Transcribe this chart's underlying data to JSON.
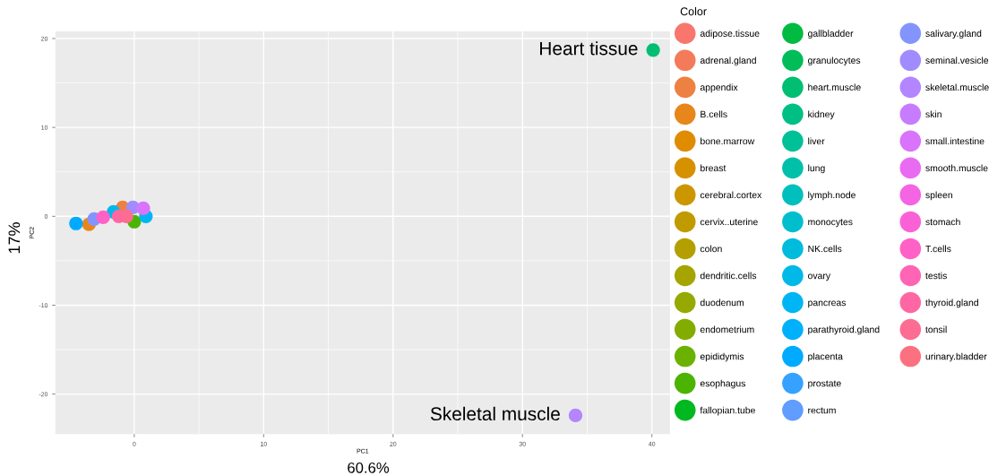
{
  "chart_data": {
    "type": "scatter",
    "xlabel": "PC1",
    "ylabel": "PC2",
    "legend_title": "Color",
    "annotations": [
      "60.6%",
      "17%",
      {
        "text": "Heart tissue",
        "x": 40.1,
        "y": 18.7
      },
      {
        "text": "Skeletal muscle",
        "x": 34.1,
        "y": -22.4
      }
    ],
    "xlim": [
      -6.1,
      41.4
    ],
    "ylim": [
      -24.5,
      20.8
    ],
    "xticks": [
      0,
      10,
      20,
      30,
      40
    ],
    "yticks": [
      -20,
      -10,
      0,
      10,
      20
    ],
    "grid": true,
    "legend": "right",
    "marker": "circle",
    "series": [
      {
        "name": "adipose.tissue",
        "color": "#F8766D",
        "x": [
          null
        ],
        "values": [
          null
        ]
      },
      {
        "name": "adrenal.gland",
        "color": "#F37B59",
        "x": [
          null
        ],
        "values": [
          null
        ]
      },
      {
        "name": "appendix",
        "color": "#ED8141",
        "x": [
          -0.9
        ],
        "values": [
          1.0
        ]
      },
      {
        "name": "B.cells",
        "color": "#E7861B",
        "x": [
          -3.5
        ],
        "values": [
          -0.9
        ]
      },
      {
        "name": "bone.marrow",
        "color": "#DF8C00",
        "x": [
          null
        ],
        "values": [
          null
        ]
      },
      {
        "name": "breast",
        "color": "#D69100",
        "x": [
          null
        ],
        "values": [
          null
        ]
      },
      {
        "name": "cerebral.cortex",
        "color": "#CC9600",
        "x": [
          null
        ],
        "values": [
          null
        ]
      },
      {
        "name": "cervix..uterine",
        "color": "#C09B00",
        "x": [
          null
        ],
        "values": [
          null
        ]
      },
      {
        "name": "colon",
        "color": "#B3A000",
        "x": [
          null
        ],
        "values": [
          null
        ]
      },
      {
        "name": "dendritic.cells",
        "color": "#A5A400",
        "x": [
          null
        ],
        "values": [
          null
        ]
      },
      {
        "name": "duodenum",
        "color": "#95A900",
        "x": [
          null
        ],
        "values": [
          null
        ]
      },
      {
        "name": "endometrium",
        "color": "#82AD00",
        "x": [
          null
        ],
        "values": [
          null
        ]
      },
      {
        "name": "epididymis",
        "color": "#6BB100",
        "x": [
          null
        ],
        "values": [
          null
        ]
      },
      {
        "name": "esophagus",
        "color": "#4BB400",
        "x": [
          0.0
        ],
        "values": [
          -0.6
        ]
      },
      {
        "name": "fallopian.tube",
        "color": "#00B81F",
        "x": [
          null
        ],
        "values": [
          null
        ]
      },
      {
        "name": "gallbladder",
        "color": "#00BA42",
        "x": [
          null
        ],
        "values": [
          null
        ]
      },
      {
        "name": "granulocytes",
        "color": "#00BC59",
        "x": [
          null
        ],
        "values": [
          null
        ]
      },
      {
        "name": "heart.muscle",
        "color": "#00BE72",
        "x": [
          40.1
        ],
        "values": [
          18.7
        ]
      },
      {
        "name": "kidney",
        "color": "#00BF85",
        "x": [
          null
        ],
        "values": [
          null
        ]
      },
      {
        "name": "liver",
        "color": "#00C098",
        "x": [
          null
        ],
        "values": [
          null
        ]
      },
      {
        "name": "lung",
        "color": "#00C0AA",
        "x": [
          null
        ],
        "values": [
          null
        ]
      },
      {
        "name": "lymph.node",
        "color": "#00BFBC",
        "x": [
          null
        ],
        "values": [
          null
        ]
      },
      {
        "name": "monocytes",
        "color": "#00BECD",
        "x": [
          null
        ],
        "values": [
          null
        ]
      },
      {
        "name": "NK.cells",
        "color": "#00BCDC",
        "x": [
          null
        ],
        "values": [
          null
        ]
      },
      {
        "name": "ovary",
        "color": "#00B9E8",
        "x": [
          -1.6
        ],
        "values": [
          0.5
        ]
      },
      {
        "name": "pancreas",
        "color": "#00B5F3",
        "x": [
          0.9
        ],
        "values": [
          0.0
        ]
      },
      {
        "name": "parathyroid.gland",
        "color": "#00B0FB",
        "x": [
          null
        ],
        "values": [
          null
        ]
      },
      {
        "name": "placenta",
        "color": "#00AAFE",
        "x": [
          -4.5
        ],
        "values": [
          -0.8
        ]
      },
      {
        "name": "prostate",
        "color": "#35A2FF",
        "x": [
          null
        ],
        "values": [
          null
        ]
      },
      {
        "name": "rectum",
        "color": "#619CFF",
        "x": [
          null
        ],
        "values": [
          null
        ]
      },
      {
        "name": "salivary.gland",
        "color": "#8494FF",
        "x": [
          -3.1
        ],
        "values": [
          -0.3
        ]
      },
      {
        "name": "seminal.vesicle",
        "color": "#A08CFF",
        "x": [
          -0.1
        ],
        "values": [
          1.0
        ]
      },
      {
        "name": "skeletal.muscle",
        "color": "#B385FF",
        "x": [
          34.1
        ],
        "values": [
          -22.4
        ]
      },
      {
        "name": "skin",
        "color": "#C77CFF",
        "x": [
          null
        ],
        "values": [
          null
        ]
      },
      {
        "name": "small.intestine",
        "color": "#DA73FB",
        "x": [
          0.7
        ],
        "values": [
          0.9
        ]
      },
      {
        "name": "smooth.muscle",
        "color": "#E96BF2",
        "x": [
          null
        ],
        "values": [
          null
        ]
      },
      {
        "name": "spleen",
        "color": "#F564E3",
        "x": [
          null
        ],
        "values": [
          null
        ]
      },
      {
        "name": "stomach",
        "color": "#FB61D7",
        "x": [
          null
        ],
        "values": [
          null
        ]
      },
      {
        "name": "T.cells",
        "color": "#FF62C6",
        "x": [
          -2.4
        ],
        "values": [
          -0.1
        ]
      },
      {
        "name": "testis",
        "color": "#FF64B5",
        "x": [
          null
        ],
        "values": [
          null
        ]
      },
      {
        "name": "thyroid.gland",
        "color": "#FF67A4",
        "x": [
          -1.2
        ],
        "values": [
          0.0
        ]
      },
      {
        "name": "tonsil",
        "color": "#FD6C92",
        "x": [
          -0.6
        ],
        "values": [
          0.0
        ]
      },
      {
        "name": "urinary.bladder",
        "color": "#FC717F",
        "x": [
          null
        ],
        "values": [
          null
        ]
      }
    ]
  }
}
